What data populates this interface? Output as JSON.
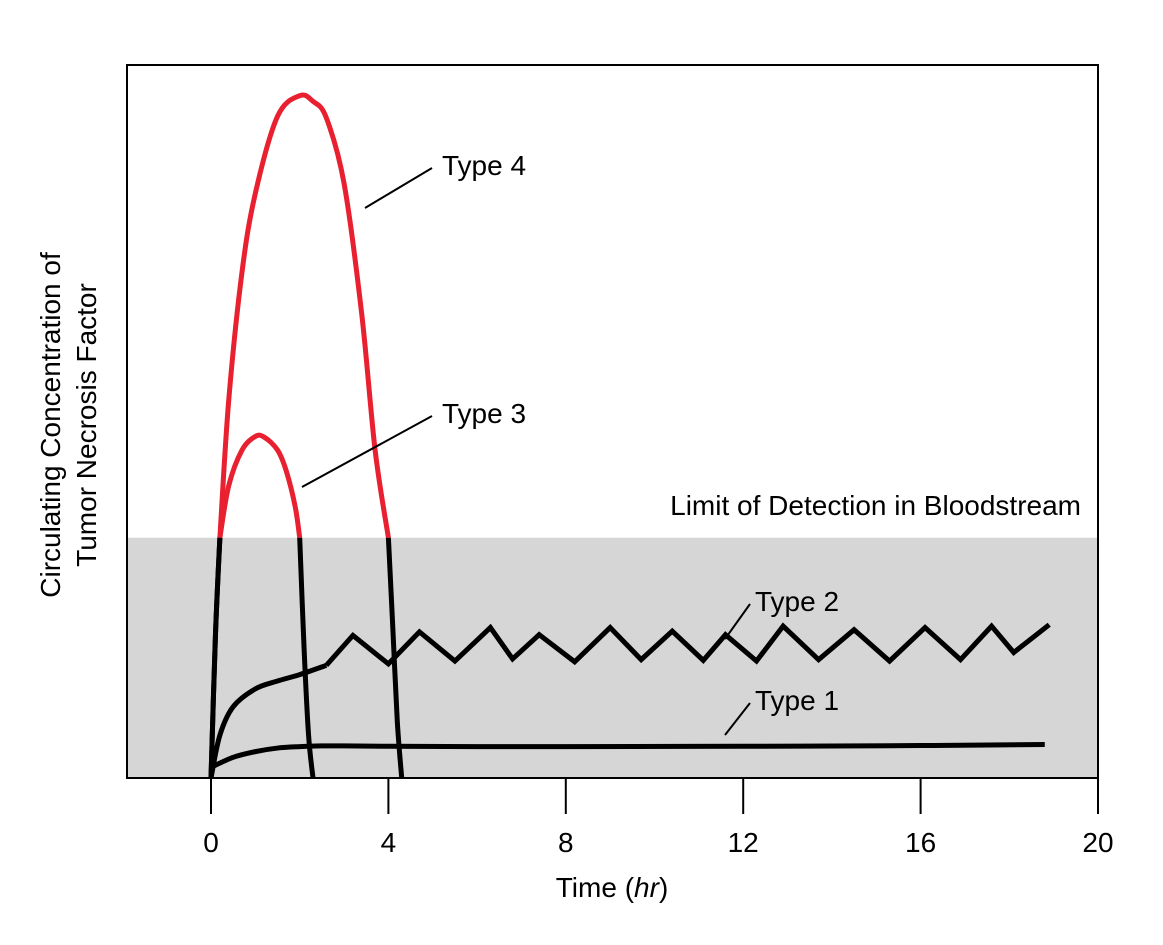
{
  "chart_data": {
    "type": "line",
    "title": "",
    "xlabel_main": "Time (",
    "xlabel_unit": "hr",
    "xlabel_close": ")",
    "ylabel_line1": "Circulating Concentration of",
    "ylabel_line2": "Tumor Necrosis Factor",
    "xlim": [
      -1.9,
      20
    ],
    "ylim": [
      0,
      100
    ],
    "xticks": [
      0,
      4,
      8,
      12,
      16,
      20
    ],
    "xtick_labels": [
      "0",
      "4",
      "8",
      "12",
      "16",
      "20"
    ],
    "detection_limit": 33.7,
    "detection_label": "Limit of Detection in Bloodstream",
    "colors": {
      "above_limit": "#e8202f",
      "below_limit": "#000000",
      "shade": "#d6d6d6"
    },
    "series": [
      {
        "name": "Type 1",
        "x": [
          0,
          0.5,
          1,
          1.5,
          2,
          2.5,
          3,
          4,
          6,
          8,
          12,
          16,
          18.8
        ],
        "y": [
          1.5,
          2.9,
          3.7,
          4.2,
          4.4,
          4.5,
          4.5,
          4.45,
          4.4,
          4.4,
          4.45,
          4.55,
          4.7
        ]
      },
      {
        "name": "Type 2",
        "x": [
          0,
          0.2,
          0.5,
          1,
          1.5,
          2,
          2.6,
          3.2,
          4,
          4.7,
          5.5,
          6.3,
          6.8,
          7.4,
          8.2,
          9,
          9.7,
          10.4,
          11.1,
          11.6,
          12.3,
          12.9,
          13.7,
          14.5,
          15.3,
          16.1,
          16.9,
          17.6,
          18.1,
          18.9
        ],
        "y": [
          0,
          6,
          10,
          12.5,
          13.6,
          14.5,
          15.8,
          20,
          16,
          20.5,
          16.4,
          21.1,
          16.7,
          20.1,
          16.3,
          21.1,
          16.6,
          20.6,
          16.5,
          20.1,
          16.4,
          21.3,
          16.6,
          20.8,
          16.4,
          21.1,
          16.6,
          21.3,
          17.6,
          21.5
        ]
      },
      {
        "name": "Type 3",
        "x": [
          0,
          0.1,
          0.2,
          0.4,
          0.7,
          1.0,
          1.2,
          1.5,
          1.7,
          1.9,
          2.0,
          2.1,
          2.2,
          2.3
        ],
        "y": [
          0,
          20,
          33.7,
          41,
          46,
          47.9,
          47.8,
          46,
          43,
          38,
          33.7,
          18,
          6,
          0
        ]
      },
      {
        "name": "Type 4",
        "x": [
          0,
          0.1,
          0.2,
          0.4,
          0.7,
          1.0,
          1.5,
          2.0,
          2.3,
          2.6,
          3.0,
          3.4,
          3.7,
          4.0,
          4.1,
          4.2,
          4.3
        ],
        "y": [
          0,
          20,
          33.7,
          53,
          71,
          82,
          92.8,
          95.7,
          94.9,
          92.6,
          83.4,
          65,
          46,
          33.7,
          21,
          8,
          0
        ]
      }
    ],
    "annotations": [
      {
        "text": "Type 4",
        "series": "Type 4"
      },
      {
        "text": "Type 3",
        "series": "Type 3"
      },
      {
        "text": "Type 2",
        "series": "Type 2"
      },
      {
        "text": "Type 1",
        "series": "Type 1"
      }
    ]
  }
}
